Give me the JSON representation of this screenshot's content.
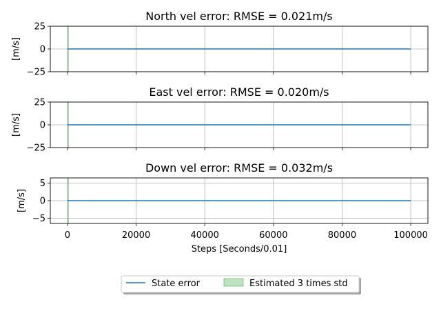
{
  "chart_data": [
    {
      "type": "line",
      "title": "North vel error: RMSE = 0.021m/s",
      "ylabel": "[m/s]",
      "xlabel": "",
      "ylim": [
        -25,
        25
      ],
      "xlim": [
        -5000,
        105000
      ],
      "yticks": [
        -25,
        0,
        25
      ],
      "xticks": [
        0,
        20000,
        40000,
        60000,
        80000,
        100000
      ],
      "show_xticklabels": false,
      "grid": true,
      "series": [
        {
          "name": "State error",
          "x": [
            0,
            100000
          ],
          "y": [
            0,
            0
          ]
        }
      ],
      "band": {
        "name": "Estimated 3 times std",
        "x": [
          0,
          300
        ],
        "upper": 25,
        "lower": -25
      }
    },
    {
      "type": "line",
      "title": "East vel error: RMSE = 0.020m/s",
      "ylabel": "[m/s]",
      "xlabel": "",
      "ylim": [
        -25,
        25
      ],
      "xlim": [
        -5000,
        105000
      ],
      "yticks": [
        -25,
        0,
        25
      ],
      "xticks": [
        0,
        20000,
        40000,
        60000,
        80000,
        100000
      ],
      "show_xticklabels": false,
      "grid": true,
      "series": [
        {
          "name": "State error",
          "x": [
            0,
            100000
          ],
          "y": [
            0,
            0
          ]
        }
      ],
      "band": {
        "name": "Estimated 3 times std",
        "x": [
          0,
          300
        ],
        "upper": 25,
        "lower": -25
      }
    },
    {
      "type": "line",
      "title": "Down vel error: RMSE = 0.032m/s",
      "ylabel": "[m/s]",
      "xlabel": "Steps [Seconds/0.01]",
      "ylim": [
        -6.5,
        6.5
      ],
      "xlim": [
        -5000,
        105000
      ],
      "yticks": [
        -5,
        0,
        5
      ],
      "xticks": [
        0,
        20000,
        40000,
        60000,
        80000,
        100000
      ],
      "show_xticklabels": true,
      "grid": true,
      "series": [
        {
          "name": "State error",
          "x": [
            0,
            100000
          ],
          "y": [
            0,
            0
          ]
        }
      ],
      "band": {
        "name": "Estimated 3 times std",
        "x": [
          0,
          300
        ],
        "upper": 6.5,
        "lower": -6.5
      }
    }
  ],
  "legend": {
    "placement": "bottom-center",
    "entries": [
      {
        "label": "State error",
        "kind": "line",
        "color": "#1f77b4"
      },
      {
        "label": "Estimated 3 times std",
        "kind": "patch",
        "color": "#2ca02c"
      }
    ]
  },
  "colors": {
    "line": "#1f77b4",
    "band_fill": "#2ca02c",
    "grid": "#b0b0b0"
  }
}
